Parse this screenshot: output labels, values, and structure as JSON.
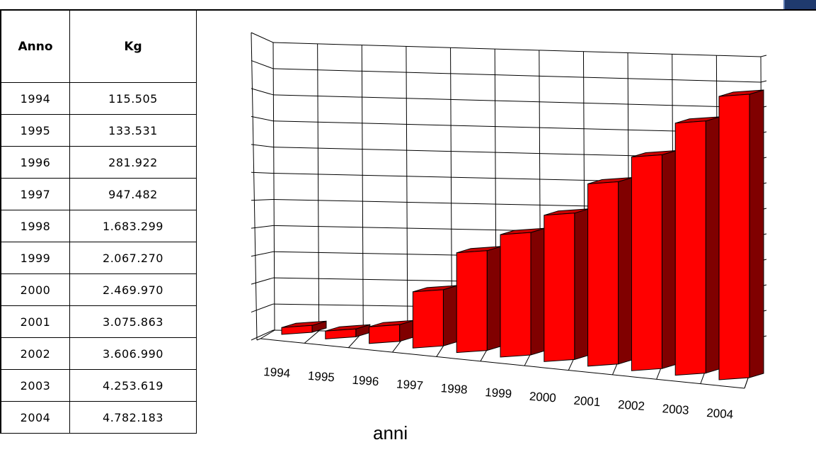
{
  "table": {
    "headers": [
      "Anno",
      "Kg"
    ],
    "rows": [
      [
        "1994",
        "115.505"
      ],
      [
        "1995",
        "133.531"
      ],
      [
        "1996",
        "281.922"
      ],
      [
        "1997",
        "947.482"
      ],
      [
        "1998",
        "1.683.299"
      ],
      [
        "1999",
        "2.067.270"
      ],
      [
        "2000",
        "2.469.970"
      ],
      [
        "2001",
        "3.075.863"
      ],
      [
        "2002",
        "3.606.990"
      ],
      [
        "2003",
        "4.253.619"
      ],
      [
        "2004",
        "4.782.183"
      ]
    ]
  },
  "chart_data": {
    "type": "bar",
    "categories": [
      "1994",
      "1995",
      "1996",
      "1997",
      "1998",
      "1999",
      "2000",
      "2001",
      "2002",
      "2003",
      "2004"
    ],
    "values": [
      115505,
      133531,
      281922,
      947482,
      1683299,
      2067270,
      2469970,
      3075863,
      3606990,
      4253619,
      4782183
    ],
    "xlabel": "anni",
    "ylabel": "",
    "title": "",
    "grid": true,
    "legend": "none"
  },
  "colors": {
    "bar_front": "#ff0000",
    "bar_side": "#800000",
    "bar_top": "#cc0000",
    "grid": "#000000",
    "badge": "#1f3a6e"
  }
}
